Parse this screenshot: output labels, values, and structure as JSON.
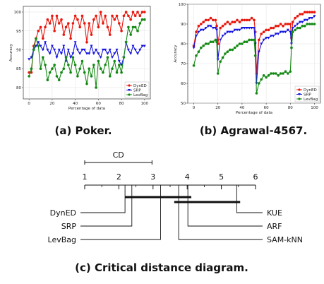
{
  "chart_data": [
    {
      "type": "line",
      "caption": "(a) Poker.",
      "xlabel": "Percentage of data",
      "ylabel": "Accuracy",
      "xlim": [
        -5,
        105
      ],
      "ylim": [
        77,
        101.5
      ],
      "xticks": [
        0,
        20,
        40,
        60,
        80,
        100
      ],
      "yticks": [
        80,
        85,
        90,
        95,
        100
      ],
      "legend": "bottom-right",
      "series": [
        {
          "name": "DynED",
          "color": "#e8160c",
          "marker": "circle",
          "x": [
            0,
            2,
            4,
            6,
            8,
            10,
            12,
            14,
            16,
            18,
            20,
            22,
            24,
            26,
            28,
            30,
            32,
            34,
            36,
            38,
            40,
            42,
            44,
            46,
            48,
            50,
            52,
            54,
            56,
            58,
            60,
            62,
            64,
            66,
            68,
            70,
            72,
            74,
            76,
            78,
            80,
            82,
            84,
            86,
            88,
            90,
            92,
            94,
            96,
            98,
            100
          ],
          "y": [
            84,
            84,
            91,
            93,
            95,
            96,
            93,
            96,
            98,
            97,
            99,
            95,
            99,
            97,
            98,
            94,
            96,
            97,
            93,
            97,
            99,
            98,
            96,
            99,
            97,
            92,
            97,
            94,
            98,
            99,
            96,
            100,
            97,
            99,
            96,
            94,
            99,
            98,
            99,
            97,
            95,
            99,
            100,
            99,
            98,
            100,
            99,
            100,
            99,
            100,
            100
          ]
        },
        {
          "name": "SRP",
          "color": "#1414e0",
          "marker": "triangle-down",
          "x": [
            0,
            2,
            4,
            6,
            8,
            10,
            12,
            14,
            16,
            18,
            20,
            22,
            24,
            26,
            28,
            30,
            32,
            34,
            36,
            38,
            40,
            42,
            44,
            46,
            48,
            50,
            52,
            54,
            56,
            58,
            60,
            62,
            64,
            66,
            68,
            70,
            72,
            74,
            76,
            78,
            80,
            82,
            84,
            86,
            88,
            90,
            92,
            94,
            96,
            98,
            100
          ],
          "y": [
            87.5,
            88,
            90,
            91,
            92,
            91,
            90,
            92,
            90,
            89,
            91,
            90,
            88,
            90,
            89,
            91,
            87,
            90,
            88,
            89,
            92,
            90,
            89,
            90,
            90,
            89,
            89,
            91,
            89,
            90,
            89,
            88,
            90,
            90,
            89,
            90,
            88,
            89,
            90,
            87,
            86,
            88,
            92,
            90,
            89,
            91,
            90,
            89,
            90,
            91,
            91
          ]
        },
        {
          "name": "LevBag",
          "color": "#138a13",
          "marker": "circle",
          "x": [
            0,
            2,
            4,
            6,
            8,
            10,
            12,
            14,
            16,
            18,
            20,
            22,
            24,
            26,
            28,
            30,
            32,
            34,
            36,
            38,
            40,
            42,
            44,
            46,
            48,
            50,
            52,
            54,
            56,
            58,
            60,
            62,
            64,
            66,
            68,
            70,
            72,
            74,
            76,
            78,
            80,
            82,
            84,
            86,
            88,
            90,
            92,
            94,
            96,
            98,
            100
          ],
          "y": [
            83,
            85,
            90,
            93,
            91,
            85,
            88,
            86,
            82,
            84,
            85,
            86,
            83,
            82,
            84,
            85,
            88,
            86,
            84,
            88,
            86,
            83,
            85,
            87,
            84,
            81,
            85,
            83,
            86,
            80,
            87,
            85,
            84,
            86,
            88,
            83,
            85,
            87,
            84,
            86,
            84,
            88,
            92,
            96,
            94,
            96,
            96,
            95,
            97,
            98,
            98
          ]
        }
      ]
    },
    {
      "type": "line",
      "caption": "(b) Agrawal-4567.",
      "xlabel": "Percentage of data",
      "ylabel": "Accuracy",
      "xlim": [
        -5,
        105
      ],
      "ylim": [
        50,
        100
      ],
      "xticks": [
        0,
        20,
        40,
        60,
        80,
        100
      ],
      "yticks": [
        50,
        60,
        70,
        80,
        90,
        100
      ],
      "legend": "bottom-right",
      "series": [
        {
          "name": "DynED",
          "color": "#e8160c",
          "marker": "circle",
          "x": [
            0,
            2,
            4,
            6,
            8,
            10,
            12,
            14,
            16,
            18,
            19,
            20,
            22,
            24,
            26,
            28,
            30,
            32,
            34,
            36,
            38,
            40,
            42,
            44,
            46,
            48,
            50,
            51,
            52,
            54,
            56,
            58,
            60,
            62,
            64,
            66,
            68,
            70,
            72,
            74,
            76,
            78,
            80,
            81,
            82,
            84,
            86,
            88,
            90,
            92,
            94,
            96,
            98,
            100
          ],
          "y": [
            79,
            86,
            89,
            90,
            91,
            92,
            92,
            93,
            92,
            92,
            89,
            80,
            88,
            89,
            90,
            91,
            90,
            91,
            91,
            92,
            91,
            92,
            92,
            92,
            92,
            93,
            92,
            86,
            65,
            82,
            85,
            86,
            87,
            87,
            88,
            88,
            89,
            89,
            90,
            89,
            90,
            90,
            90,
            83,
            91,
            93,
            94,
            95,
            95,
            96,
            96,
            96,
            96,
            96
          ]
        },
        {
          "name": "SRP",
          "color": "#1414e0",
          "marker": "triangle-down",
          "x": [
            0,
            2,
            4,
            6,
            8,
            10,
            12,
            14,
            16,
            18,
            19,
            20,
            22,
            24,
            26,
            28,
            30,
            32,
            34,
            36,
            38,
            40,
            42,
            44,
            46,
            48,
            50,
            51,
            52,
            54,
            56,
            58,
            60,
            62,
            64,
            66,
            68,
            70,
            72,
            74,
            76,
            78,
            80,
            81,
            82,
            84,
            86,
            88,
            90,
            92,
            94,
            96,
            98,
            100
          ],
          "y": [
            78,
            84,
            86,
            87,
            87,
            88,
            89,
            89,
            88,
            88,
            87,
            72,
            82,
            84,
            85,
            86,
            86,
            86,
            87,
            87,
            87,
            88,
            88,
            88,
            88,
            88,
            88,
            80,
            60,
            76,
            80,
            82,
            83,
            83,
            84,
            84,
            85,
            85,
            86,
            86,
            86,
            87,
            86,
            80,
            88,
            89,
            90,
            91,
            91,
            92,
            92,
            93,
            93,
            94
          ]
        },
        {
          "name": "LevBag",
          "color": "#138a13",
          "marker": "circle",
          "x": [
            0,
            2,
            4,
            6,
            8,
            10,
            12,
            14,
            16,
            18,
            19,
            20,
            22,
            24,
            26,
            28,
            30,
            32,
            34,
            36,
            38,
            40,
            42,
            44,
            46,
            48,
            50,
            51,
            52,
            54,
            56,
            58,
            60,
            62,
            64,
            66,
            68,
            70,
            72,
            74,
            76,
            78,
            80,
            81,
            82,
            84,
            86,
            88,
            90,
            92,
            94,
            96,
            98,
            100
          ],
          "y": [
            69,
            74,
            76,
            78,
            79,
            80,
            80,
            81,
            81,
            82,
            81,
            65,
            71,
            73,
            75,
            76,
            77,
            77,
            78,
            79,
            80,
            80,
            81,
            81,
            82,
            82,
            82,
            74,
            55,
            60,
            62,
            64,
            63,
            64,
            65,
            65,
            65,
            64,
            65,
            65,
            66,
            65,
            66,
            78,
            86,
            87,
            88,
            88,
            89,
            89,
            90,
            90,
            90,
            90
          ]
        }
      ]
    },
    {
      "type": "critical-distance",
      "caption": "(c) Critical distance diagram.",
      "cd_label": "CD",
      "cd_value": 1.97,
      "scale_ticks": [
        "1",
        "2",
        "3",
        "4",
        "5",
        "6"
      ],
      "scale_range": [
        1,
        6
      ],
      "methods_left": [
        {
          "name": "DynED",
          "rank": 2.18
        },
        {
          "name": "SRP",
          "rank": 2.38
        },
        {
          "name": "LevBag",
          "rank": 3.22
        }
      ],
      "methods_right": [
        {
          "name": "KUE",
          "rank": 5.45
        },
        {
          "name": "ARF",
          "rank": 4.02
        },
        {
          "name": "SAM-kNN",
          "rank": 3.75
        }
      ],
      "cliques": [
        [
          2.18,
          4.12
        ],
        [
          3.62,
          5.55
        ]
      ]
    }
  ]
}
